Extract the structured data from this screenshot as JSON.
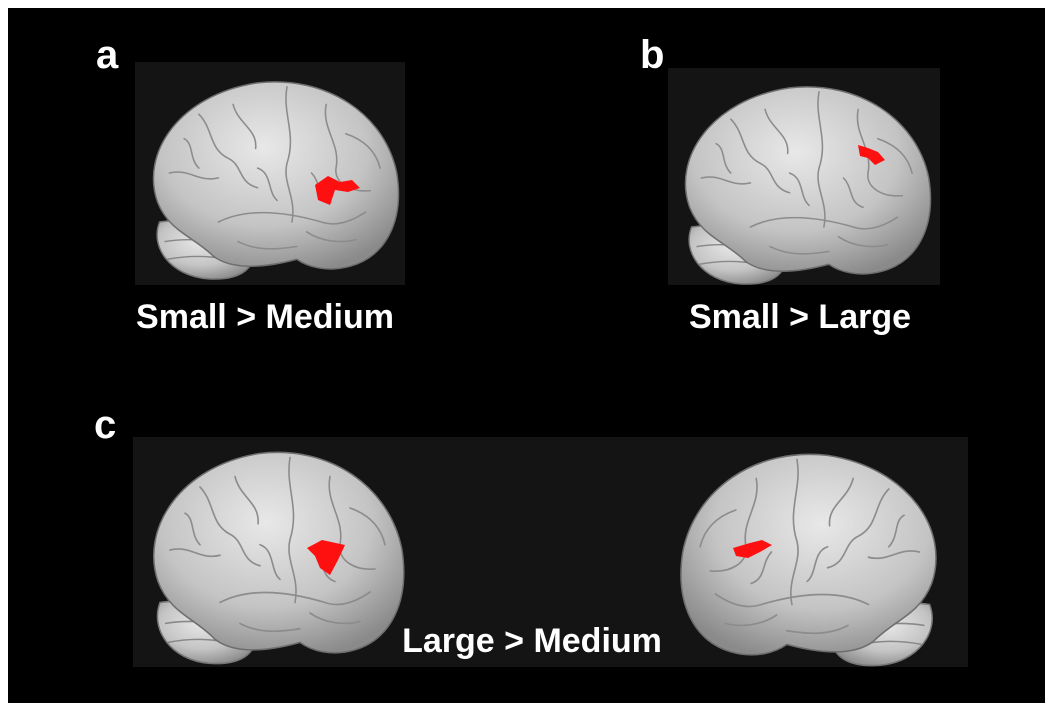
{
  "panels": [
    {
      "label": "a",
      "caption": "Small > Medium"
    },
    {
      "label": "b",
      "caption": "Small > Large"
    },
    {
      "label": "c",
      "caption": "Large > Medium"
    }
  ]
}
